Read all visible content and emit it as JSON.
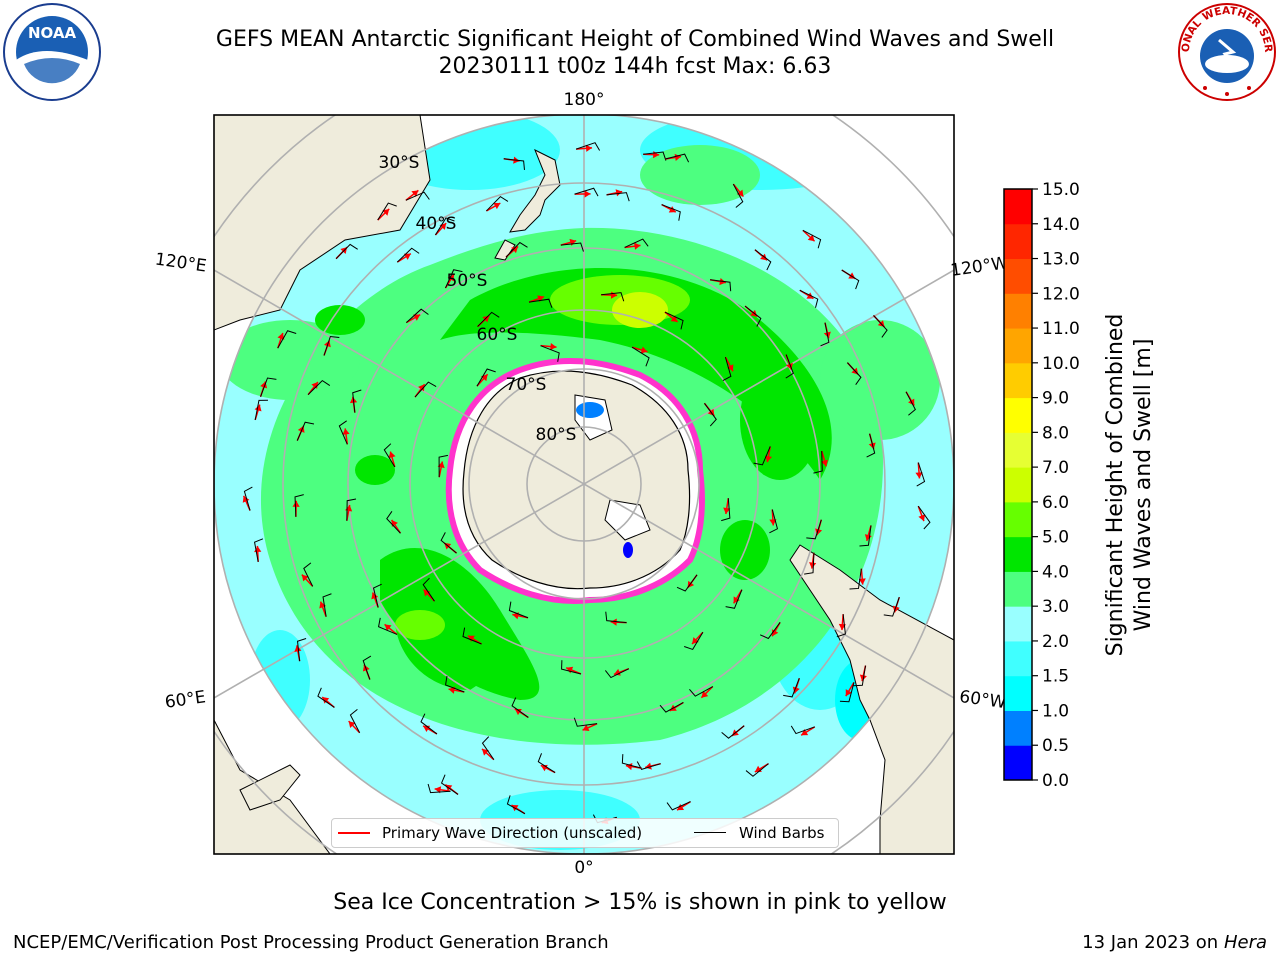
{
  "title": {
    "line1": "GEFS MEAN Antarctic Significant Height of Combined Wind Waves and Swell",
    "line2": "20230111 t00z 144h fcst   Max: 6.63"
  },
  "map": {
    "meridian_labels": [
      "180°",
      "120°E",
      "120°W",
      "60°E",
      "60°W",
      "0°"
    ],
    "parallel_labels": [
      "30°S",
      "40°S",
      "50°S",
      "60°S",
      "70°S",
      "80°S"
    ]
  },
  "legend": {
    "wave_label": "Primary Wave Direction (unscaled)",
    "barb_label": "Wind Barbs",
    "wave_color": "#ff0000",
    "barb_color": "#000000"
  },
  "colorbar": {
    "label_line1": "Significant Height of Combined",
    "label_line2": "Wind Waves and Swell [m]",
    "ticks": [
      "0.0",
      "0.5",
      "1.0",
      "1.5",
      "2.0",
      "3.0",
      "4.0",
      "5.0",
      "6.0",
      "7.0",
      "8.0",
      "9.0",
      "10.0",
      "11.0",
      "12.0",
      "13.0",
      "14.0",
      "15.0"
    ],
    "colors": [
      "#0000ff",
      "#0080ff",
      "#00ffff",
      "#40ffff",
      "#99ffff",
      "#4dff80",
      "#00e600",
      "#66ff00",
      "#ccff00",
      "#e6ff33",
      "#ffff00",
      "#ffcc00",
      "#ffa500",
      "#ff8000",
      "#ff4d00",
      "#ff2600",
      "#ff0000"
    ]
  },
  "subtitle": "Sea Ice Concentration > 15% is shown in pink to yellow",
  "footer": {
    "left": "NCEP/EMC/Verification Post Processing Product Generation Branch",
    "right_prefix": "13 Jan 2023 on ",
    "right_machine": "Hera"
  },
  "logos": {
    "noaa": "NOAA",
    "nws": "NATIONAL WEATHER SERVICE"
  }
}
